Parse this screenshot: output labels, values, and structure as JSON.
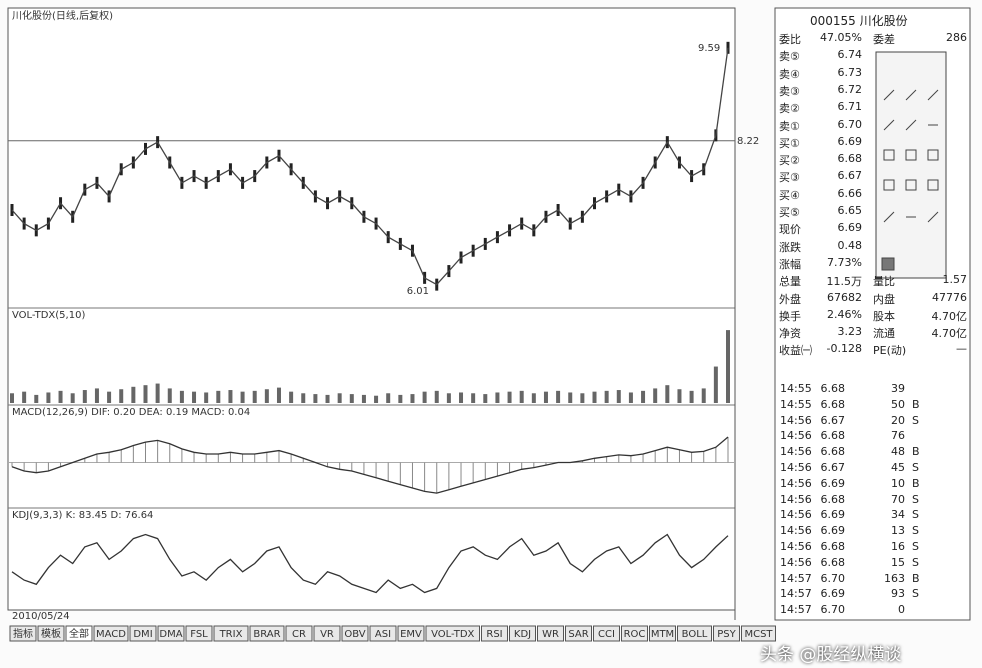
{
  "chart": {
    "header": "川化股份(日线,后复权)",
    "price": {
      "ylim": [
        5.8,
        10.0
      ],
      "yticks": [
        8.22
      ],
      "annotations": [
        {
          "text": "9.59",
          "value": 9.59,
          "index": 59
        },
        {
          "text": "6.01",
          "value": 6.01,
          "index": 35
        }
      ],
      "close": [
        7.2,
        7.0,
        6.9,
        7.0,
        7.3,
        7.1,
        7.5,
        7.6,
        7.4,
        7.8,
        7.9,
        8.1,
        8.2,
        7.9,
        7.6,
        7.7,
        7.6,
        7.7,
        7.8,
        7.6,
        7.7,
        7.9,
        8.0,
        7.8,
        7.6,
        7.4,
        7.3,
        7.4,
        7.3,
        7.1,
        7.0,
        6.8,
        6.7,
        6.6,
        6.2,
        6.1,
        6.3,
        6.5,
        6.6,
        6.7,
        6.8,
        6.9,
        7.0,
        6.9,
        7.1,
        7.2,
        7.0,
        7.1,
        7.3,
        7.4,
        7.5,
        7.4,
        7.6,
        7.9,
        8.2,
        7.9,
        7.7,
        7.8,
        8.3,
        9.59
      ]
    },
    "volume": {
      "header": "VOL-TDX(5,10)",
      "ylim": [
        0,
        100
      ],
      "values": [
        12,
        14,
        10,
        13,
        15,
        12,
        16,
        18,
        14,
        17,
        20,
        22,
        24,
        18,
        15,
        14,
        13,
        15,
        16,
        14,
        15,
        17,
        19,
        14,
        12,
        11,
        10,
        12,
        11,
        10,
        9,
        12,
        10,
        11,
        14,
        15,
        12,
        13,
        12,
        11,
        13,
        14,
        15,
        12,
        14,
        15,
        13,
        12,
        14,
        15,
        16,
        13,
        15,
        18,
        22,
        17,
        15,
        18,
        45,
        90
      ]
    },
    "macd": {
      "header": "MACD(12,26,9) DIF: 0.20 DEA: 0.19 MACD: 0.04",
      "ylim": [
        -0.5,
        0.5
      ],
      "values": [
        -0.05,
        -0.1,
        -0.12,
        -0.1,
        -0.05,
        0,
        0.05,
        0.1,
        0.12,
        0.15,
        0.2,
        0.24,
        0.26,
        0.22,
        0.16,
        0.12,
        0.1,
        0.1,
        0.12,
        0.1,
        0.1,
        0.12,
        0.14,
        0.1,
        0.05,
        0,
        -0.05,
        -0.08,
        -0.1,
        -0.14,
        -0.18,
        -0.22,
        -0.26,
        -0.3,
        -0.34,
        -0.36,
        -0.32,
        -0.28,
        -0.24,
        -0.2,
        -0.16,
        -0.12,
        -0.08,
        -0.06,
        -0.03,
        0,
        0.0,
        0.02,
        0.05,
        0.07,
        0.09,
        0.08,
        0.1,
        0.14,
        0.18,
        0.15,
        0.12,
        0.13,
        0.18,
        0.3
      ]
    },
    "kdj": {
      "header": "KDJ(9,3,3) K: 83.45 D: 76.64",
      "ylim": [
        0,
        100
      ],
      "values": [
        40,
        30,
        25,
        45,
        60,
        50,
        70,
        75,
        55,
        65,
        80,
        85,
        80,
        55,
        35,
        40,
        30,
        45,
        55,
        40,
        50,
        65,
        70,
        45,
        30,
        25,
        40,
        35,
        25,
        20,
        15,
        30,
        20,
        25,
        15,
        20,
        45,
        65,
        70,
        60,
        55,
        70,
        80,
        60,
        65,
        75,
        50,
        40,
        55,
        65,
        70,
        50,
        60,
        75,
        85,
        60,
        45,
        55,
        70,
        83.45
      ]
    },
    "date": "2010/05/24",
    "tabs": [
      "指标",
      "模板",
      "全部",
      "MACD",
      "DMI",
      "DMA",
      "FSL",
      "TRIX",
      "BRAR",
      "CR",
      "VR",
      "OBV",
      "ASI",
      "EMV",
      "VOL-TDX",
      "RSI",
      "KDJ",
      "WR",
      "SAR",
      "CCI",
      "ROC",
      "MTM",
      "BOLL",
      "PSY",
      "MCST"
    ]
  },
  "quote": {
    "title": "000155 川化股份",
    "rows": [
      [
        "委比",
        "47.05%",
        "委差",
        "286"
      ],
      [
        "卖⑤",
        "6.74"
      ],
      [
        "卖④",
        "6.73"
      ],
      [
        "卖③",
        "6.72"
      ],
      [
        "卖②",
        "6.71"
      ],
      [
        "卖①",
        "6.70"
      ],
      [
        "买①",
        "6.69"
      ],
      [
        "买②",
        "6.68"
      ],
      [
        "买③",
        "6.67"
      ],
      [
        "买④",
        "6.66"
      ],
      [
        "买⑤",
        "6.65"
      ],
      [
        "现价",
        "6.69"
      ],
      [
        "涨跌",
        "0.48"
      ],
      [
        "涨幅",
        "7.73%"
      ],
      [
        "总量",
        "11.5万",
        "量比",
        "1.57"
      ],
      [
        "外盘",
        "67682",
        "内盘",
        "47776"
      ],
      [
        "换手",
        "2.46%",
        "股本",
        "4.70亿"
      ],
      [
        "净资",
        "3.23",
        "流通",
        "4.70亿"
      ],
      [
        "收益㈠",
        "-0.128",
        "PE(动)",
        "—"
      ]
    ],
    "trades": [
      [
        "14:55",
        "6.68",
        "39"
      ],
      [
        "14:55",
        "6.68",
        "50",
        "B"
      ],
      [
        "14:56",
        "6.67",
        "20",
        "S"
      ],
      [
        "14:56",
        "6.68",
        "76"
      ],
      [
        "14:56",
        "6.68",
        "48",
        "B"
      ],
      [
        "14:56",
        "6.67",
        "45",
        "S"
      ],
      [
        "14:56",
        "6.69",
        "10",
        "B"
      ],
      [
        "14:56",
        "6.68",
        "70",
        "S"
      ],
      [
        "14:56",
        "6.69",
        "34",
        "S"
      ],
      [
        "14:56",
        "6.69",
        "13",
        "S"
      ],
      [
        "14:56",
        "6.68",
        "16",
        "S"
      ],
      [
        "14:56",
        "6.68",
        "15",
        "S"
      ],
      [
        "14:57",
        "6.70",
        "163",
        "B"
      ],
      [
        "14:57",
        "6.69",
        "93",
        "S"
      ],
      [
        "14:57",
        "6.70",
        "0"
      ]
    ]
  },
  "watermark": "头条 @股经纵横谈"
}
